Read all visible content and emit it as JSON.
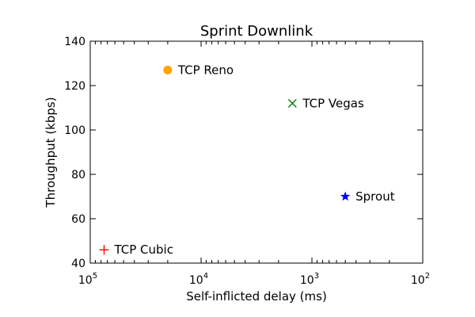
{
  "chart_data": {
    "type": "scatter",
    "title": "Sprint Downlink",
    "xlabel": "Self-inflicted delay (ms)",
    "ylabel": "Throughput (kbps)",
    "x_scale": "log",
    "x_axis_inverted": true,
    "xlim": [
      100000,
      100
    ],
    "ylim": [
      40,
      140
    ],
    "x_ticks": [
      {
        "value": 100000,
        "base": "10",
        "exp": "5"
      },
      {
        "value": 10000,
        "base": "10",
        "exp": "4"
      },
      {
        "value": 1000,
        "base": "10",
        "exp": "3"
      },
      {
        "value": 100,
        "base": "10",
        "exp": "2"
      }
    ],
    "y_ticks": [
      "40",
      "60",
      "80",
      "100",
      "120",
      "140"
    ],
    "grid": false,
    "points": [
      {
        "label": "TCP Reno",
        "x": 20000,
        "y": 127,
        "marker": "circle",
        "color": "#FFA500"
      },
      {
        "label": "TCP Vegas",
        "x": 1500,
        "y": 112,
        "marker": "x",
        "color": "#008000"
      },
      {
        "label": "Sprout",
        "x": 500,
        "y": 70,
        "marker": "star",
        "color": "#0000FF"
      },
      {
        "label": "TCP Cubic",
        "x": 75000,
        "y": 46,
        "marker": "plus",
        "color": "#FF0000"
      }
    ]
  }
}
